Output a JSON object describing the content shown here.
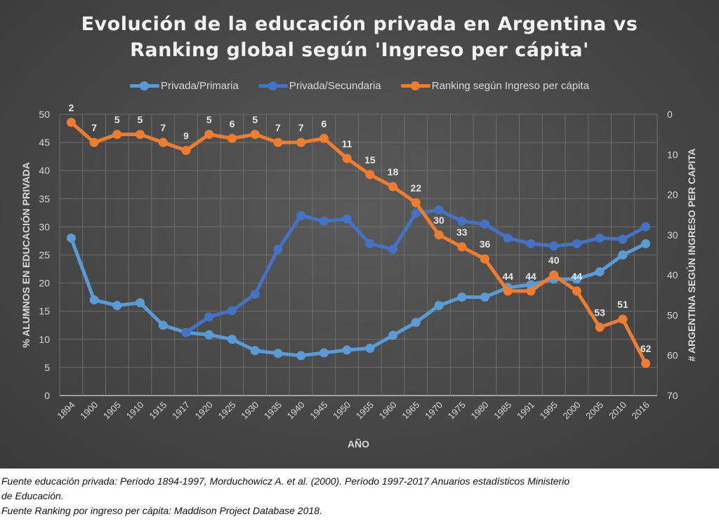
{
  "chart_data": {
    "type": "line",
    "title_line1": "Evolución de la educación privada en Argentina vs",
    "title_line2": "Ranking global según 'Ingreso per cápita'",
    "xlabel": "AÑO",
    "ylabel_left": "% ALUMNOS EN EDUCACIÓN PRIVADA",
    "ylabel_right": "# ARGENTINA SEGÚN INGRESO PER CAPITA",
    "ylim_left": [
      0,
      50
    ],
    "ylim_right": [
      0,
      70
    ],
    "right_axis_inverted": true,
    "yticks_left": [
      0,
      5,
      10,
      15,
      20,
      25,
      30,
      35,
      40,
      45,
      50
    ],
    "yticks_right": [
      0,
      10,
      20,
      30,
      40,
      50,
      60,
      70
    ],
    "grid": true,
    "legend_position": "top",
    "categories": [
      "1894",
      "1900",
      "1905",
      "1910",
      "1915",
      "1917",
      "1920",
      "1925",
      "1930",
      "1935",
      "1940",
      "1945",
      "1950",
      "1955",
      "1960",
      "1965",
      "1970",
      "1975",
      "1980",
      "1985",
      "1991",
      "1995",
      "2000",
      "2005",
      "2010",
      "2016"
    ],
    "series": [
      {
        "name": "Privada/Primaria",
        "axis": "left",
        "color": "#5b9bd5",
        "values": [
          28,
          17,
          16,
          16.5,
          12.5,
          11.2,
          10.8,
          10,
          8,
          7.5,
          7.1,
          7.6,
          8.1,
          8.4,
          10.7,
          13,
          16,
          17.5,
          17.5,
          19.2,
          19.7,
          20.7,
          20.7,
          22,
          25,
          27
        ]
      },
      {
        "name": "Privada/Secundaria",
        "axis": "left",
        "color": "#4472c4",
        "values": [
          null,
          null,
          null,
          null,
          null,
          11.2,
          14,
          15.1,
          18,
          26,
          32,
          31,
          31.4,
          27,
          26,
          32.4,
          33,
          31,
          30.5,
          28,
          27,
          26.6,
          27,
          28,
          27.8,
          30
        ]
      },
      {
        "name": "Ranking según Ingreso per cápita",
        "axis": "right",
        "color": "#ed7d31",
        "data_labels": true,
        "values": [
          2,
          7,
          5,
          5,
          7,
          9,
          5,
          6,
          5,
          7,
          7,
          6,
          11,
          15,
          18,
          22,
          30,
          33,
          36,
          44,
          44,
          40,
          44,
          53,
          51,
          62
        ]
      }
    ]
  },
  "footer": {
    "line1": "Fuente educación privada: Período 1894-1997, Morduchowicz A. et al. (2000). Período 1997-2017 Anuarios estadísticos Ministerio",
    "line2": "de Educación.",
    "line3": "Fuente Ranking por ingreso per cápita: Maddison Project Database 2018."
  }
}
